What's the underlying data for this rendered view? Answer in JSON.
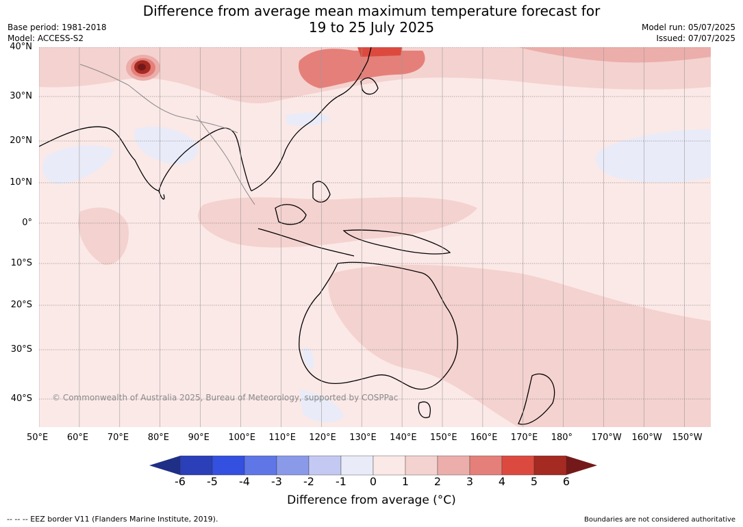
{
  "header": {
    "title_line1": "Difference from average mean maximum temperature forecast for",
    "title_line2": "19 to 25 July 2025",
    "base_period": "Base period: 1981-2018",
    "model": "Model: ACCESS-S2",
    "model_run": "Model run: 05/07/2025",
    "issued": "Issued: 07/07/2025"
  },
  "map": {
    "lat_labels": [
      "40°N",
      "30°N",
      "20°N",
      "10°N",
      "0°",
      "10°S",
      "20°S",
      "30°S",
      "40°S"
    ],
    "lon_labels": [
      "50°E",
      "60°E",
      "70°E",
      "80°E",
      "90°E",
      "100°E",
      "110°E",
      "120°E",
      "130°E",
      "140°E",
      "150°E",
      "160°E",
      "170°E",
      "180°",
      "170°W",
      "160°W",
      "150°W"
    ],
    "credit": "© Commonwealth of Australia 2025, Bureau of Meteorology, supported by COSPPac",
    "background_color": "#fbe9e7"
  },
  "legend": {
    "ticks": [
      "-6",
      "-5",
      "-4",
      "-3",
      "-2",
      "-1",
      "0",
      "1",
      "2",
      "3",
      "4",
      "5",
      "6"
    ],
    "label": "Difference from average (°C)",
    "colors": [
      "#1f2f86",
      "#2a3fb8",
      "#3350e0",
      "#5f76e6",
      "#8a9ae9",
      "#c3c9f2",
      "#e9ebf8",
      "#fbe9e7",
      "#f4d2cf",
      "#ecaeab",
      "#e48079",
      "#dc4a3f",
      "#a52a22",
      "#74191a"
    ]
  },
  "footer": {
    "eez_note": "--  --  -- EEZ border V11 (Flanders Marine Institute, 2019).",
    "boundaries_note": "Boundaries are not considered authoritative"
  }
}
